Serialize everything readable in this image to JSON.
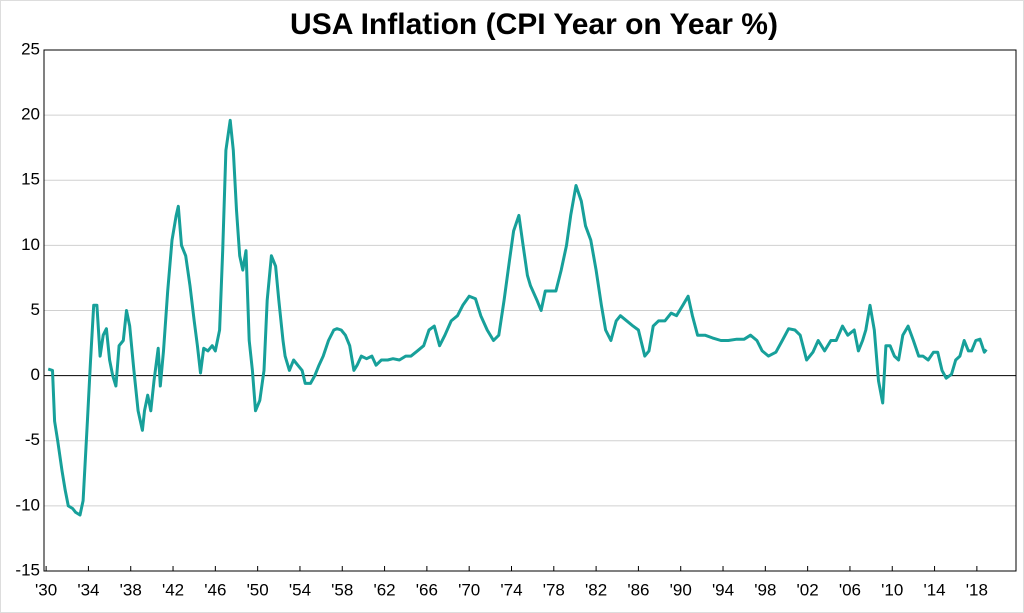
{
  "chart_data": {
    "type": "line",
    "title": "USA Inflation (CPI Year on Year %)",
    "x": [
      1930.2,
      1930.6,
      1930.8,
      1931.1,
      1931.5,
      1931.8,
      1932.1,
      1932.5,
      1932.8,
      1933.2,
      1933.5,
      1933.9,
      1934.2,
      1934.5,
      1934.8,
      1935.1,
      1935.4,
      1935.7,
      1936.0,
      1936.3,
      1936.6,
      1936.9,
      1937.3,
      1937.6,
      1937.9,
      1938.3,
      1938.7,
      1939.1,
      1939.3,
      1939.6,
      1939.9,
      1940.2,
      1940.6,
      1940.8,
      1941.1,
      1941.5,
      1941.9,
      1942.3,
      1942.5,
      1942.8,
      1943.2,
      1943.6,
      1944.0,
      1944.3,
      1944.6,
      1944.9,
      1945.3,
      1945.7,
      1946.0,
      1946.4,
      1946.7,
      1947.0,
      1947.4,
      1947.7,
      1948.0,
      1948.3,
      1948.6,
      1948.9,
      1949.2,
      1949.5,
      1949.8,
      1950.2,
      1950.6,
      1950.9,
      1951.3,
      1951.7,
      1952.0,
      1952.4,
      1952.6,
      1953.0,
      1953.4,
      1953.8,
      1954.2,
      1954.5,
      1955.0,
      1955.4,
      1955.8,
      1956.2,
      1956.7,
      1957.2,
      1957.5,
      1957.9,
      1958.3,
      1958.7,
      1959.1,
      1959.4,
      1959.8,
      1960.3,
      1960.8,
      1961.2,
      1961.7,
      1962.3,
      1962.8,
      1963.4,
      1964.0,
      1964.5,
      1965.1,
      1965.7,
      1966.2,
      1966.7,
      1967.2,
      1967.7,
      1968.3,
      1968.9,
      1969.4,
      1970.0,
      1970.6,
      1971.1,
      1971.7,
      1972.3,
      1972.8,
      1973.3,
      1973.8,
      1974.2,
      1974.7,
      1975.1,
      1975.5,
      1975.8,
      1976.4,
      1976.8,
      1977.2,
      1977.7,
      1978.2,
      1978.7,
      1979.2,
      1979.6,
      1980.1,
      1980.6,
      1981.0,
      1981.5,
      1982.0,
      1982.5,
      1982.9,
      1983.4,
      1983.9,
      1984.3,
      1984.9,
      1985.5,
      1986.0,
      1986.6,
      1987.0,
      1987.4,
      1987.9,
      1988.5,
      1989.1,
      1989.6,
      1990.2,
      1990.7,
      1991.1,
      1991.6,
      1992.3,
      1993.0,
      1993.8,
      1994.5,
      1995.3,
      1996.0,
      1996.6,
      1997.2,
      1997.7,
      1998.3,
      1999.0,
      1999.6,
      2000.2,
      2000.8,
      2001.3,
      2001.9,
      2002.5,
      2003.0,
      2003.6,
      2004.2,
      2004.7,
      2005.3,
      2005.8,
      2006.4,
      2006.8,
      2007.2,
      2007.5,
      2007.9,
      2008.3,
      2008.7,
      2009.1,
      2009.4,
      2009.8,
      2010.2,
      2010.6,
      2011.0,
      2011.5,
      2012.0,
      2012.5,
      2012.9,
      2013.4,
      2013.9,
      2014.3,
      2014.7,
      2015.1,
      2015.6,
      2016.0,
      2016.4,
      2016.8,
      2017.2,
      2017.5,
      2017.9,
      2018.3,
      2018.7,
      2018.9
    ],
    "values": [
      0.5,
      0.4,
      -3.5,
      -5,
      -7.3,
      -8.8,
      -10,
      -10.2,
      -10.5,
      -10.7,
      -9.6,
      -3.5,
      1.1,
      5.4,
      5.4,
      1.5,
      3.1,
      3.6,
      1.2,
      0,
      -0.8,
      2.3,
      2.7,
      5,
      3.8,
      0.4,
      -2.7,
      -4.2,
      -2.7,
      -1.5,
      -2.7,
      -0.4,
      2.1,
      -0.8,
      1.9,
      6.5,
      10.4,
      12.3,
      13,
      10,
      9.2,
      6.9,
      4.2,
      2.3,
      0.2,
      2.1,
      1.9,
      2.3,
      1.9,
      3.5,
      9.6,
      17.3,
      19.6,
      17.3,
      12.7,
      9.2,
      8.1,
      9.6,
      2.7,
      0.4,
      -2.7,
      -1.9,
      0.4,
      5.8,
      9.2,
      8.4,
      5.8,
      2.7,
      1.5,
      0.4,
      1.2,
      0.8,
      0.4,
      -0.6,
      -0.6,
      0,
      0.8,
      1.5,
      2.7,
      3.5,
      3.6,
      3.5,
      3.1,
      2.3,
      0.4,
      0.8,
      1.5,
      1.3,
      1.5,
      0.8,
      1.2,
      1.2,
      1.3,
      1.2,
      1.5,
      1.5,
      1.9,
      2.3,
      3.5,
      3.8,
      2.3,
      3.1,
      4.2,
      4.6,
      5.4,
      6.1,
      5.9,
      4.6,
      3.5,
      2.7,
      3.1,
      5.8,
      8.8,
      11.1,
      12.3,
      10,
      7.7,
      6.9,
      5.8,
      5,
      6.5,
      6.5,
      6.5,
      8.1,
      10,
      12.3,
      14.6,
      13.4,
      11.5,
      10.4,
      8.1,
      5.4,
      3.5,
      2.7,
      4.2,
      4.6,
      4.2,
      3.8,
      3.5,
      1.5,
      1.9,
      3.8,
      4.2,
      4.2,
      4.8,
      4.6,
      5.4,
      6.1,
      4.6,
      3.1,
      3.1,
      2.9,
      2.7,
      2.7,
      2.8,
      2.8,
      3.1,
      2.7,
      1.9,
      1.5,
      1.8,
      2.7,
      3.6,
      3.5,
      3.1,
      1.2,
      1.8,
      2.7,
      1.9,
      2.7,
      2.7,
      3.8,
      3.1,
      3.5,
      1.9,
      2.7,
      3.5,
      5.4,
      3.5,
      -0.4,
      -2.1,
      2.3,
      2.3,
      1.5,
      1.2,
      3.1,
      3.8,
      2.7,
      1.5,
      1.5,
      1.2,
      1.8,
      1.8,
      0.4,
      -0.2,
      0.1,
      1.2,
      1.5,
      2.7,
      1.9,
      1.9,
      2.7,
      2.8,
      1.8,
      2.0
    ],
    "color": "#17a09a",
    "xlim": [
      1929.8,
      2021.7
    ],
    "xticks": [
      {
        "value": 1930,
        "label": "'30"
      },
      {
        "value": 1934,
        "label": "'34"
      },
      {
        "value": 1938,
        "label": "'38"
      },
      {
        "value": 1942,
        "label": "'42"
      },
      {
        "value": 1946,
        "label": "'46"
      },
      {
        "value": 1950,
        "label": "'50"
      },
      {
        "value": 1954,
        "label": "'54"
      },
      {
        "value": 1958,
        "label": "'58"
      },
      {
        "value": 1962,
        "label": "'62"
      },
      {
        "value": 1966,
        "label": "'66"
      },
      {
        "value": 1970,
        "label": "'70"
      },
      {
        "value": 1974,
        "label": "'74"
      },
      {
        "value": 1978,
        "label": "'78"
      },
      {
        "value": 1982,
        "label": "'82"
      },
      {
        "value": 1986,
        "label": "'86"
      },
      {
        "value": 1990,
        "label": "'90"
      },
      {
        "value": 1994,
        "label": "'94"
      },
      {
        "value": 1998,
        "label": "'98"
      },
      {
        "value": 2002,
        "label": "'02"
      },
      {
        "value": 2006,
        "label": "'06"
      },
      {
        "value": 2010,
        "label": "'10"
      },
      {
        "value": 2014,
        "label": "'14"
      },
      {
        "value": 2018,
        "label": "'18"
      }
    ],
    "ylim": [
      -15,
      25
    ],
    "yticks": [
      -15,
      -10,
      -5,
      0,
      5,
      10,
      15,
      20,
      25
    ],
    "grid": true
  }
}
